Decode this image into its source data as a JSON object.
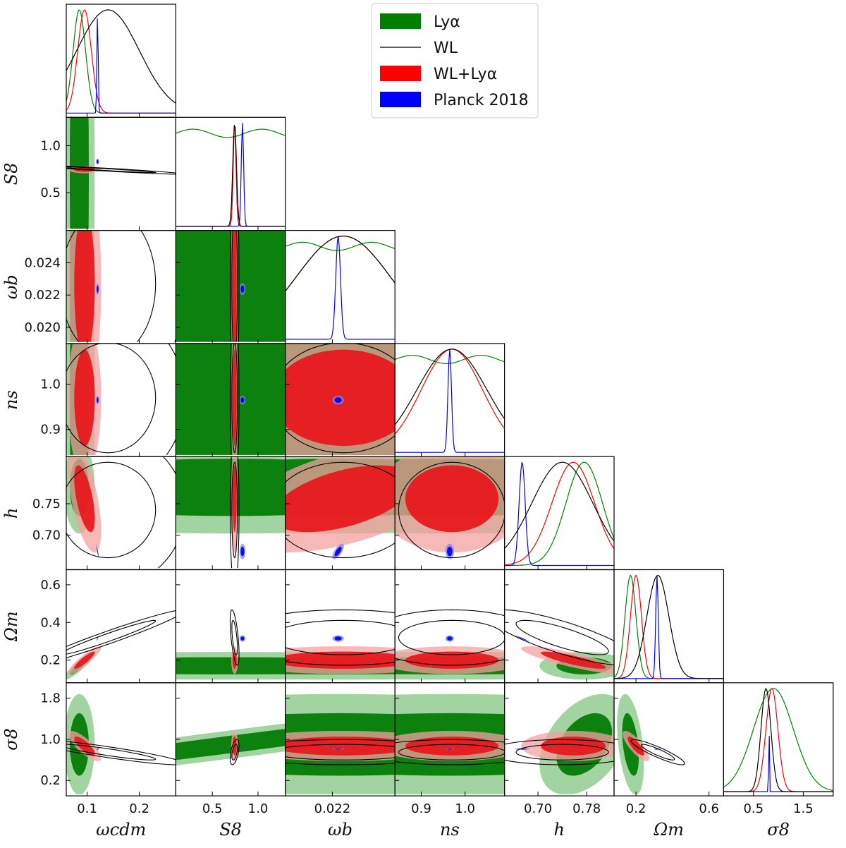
{
  "chart_data": {
    "type": "corner",
    "parameters": [
      {
        "key": "omega_cdm",
        "label": "ωcdm",
        "range": [
          0.06,
          0.27
        ],
        "ticks": [
          0.1,
          0.2
        ],
        "tick_labels": [
          "0.1",
          "0.2"
        ]
      },
      {
        "key": "S8",
        "label": "S8",
        "range": [
          0.1,
          1.3
        ],
        "ticks": [
          0.5,
          1.0
        ],
        "tick_labels": [
          "0.5",
          "1.0"
        ],
        "row_ticks": [
          0.5,
          1.0
        ],
        "row_tick_labels": [
          "0.5",
          "1.0"
        ]
      },
      {
        "key": "omega_b",
        "label": "ωb",
        "range": [
          0.019,
          0.026
        ],
        "ticks": [
          0.022
        ],
        "tick_labels": [
          "0.022"
        ],
        "row_ticks": [
          0.02,
          0.022,
          0.024
        ],
        "row_tick_labels": [
          "0.020",
          "0.022",
          "0.024"
        ]
      },
      {
        "key": "n_s",
        "label": "ns",
        "range": [
          0.84,
          1.09
        ],
        "ticks": [
          0.9,
          1.0
        ],
        "tick_labels": [
          "0.9",
          "1.0"
        ],
        "row_ticks": [
          0.9,
          1.0
        ],
        "row_tick_labels": [
          "0.9",
          "1.0"
        ]
      },
      {
        "key": "h",
        "label": "h",
        "range": [
          0.645,
          0.825
        ],
        "ticks": [
          0.7,
          0.78
        ],
        "tick_labels": [
          "0.70",
          "0.78"
        ],
        "row_ticks": [
          0.7,
          0.75
        ],
        "row_tick_labels": [
          "0.70",
          "0.75"
        ]
      },
      {
        "key": "Omega_m",
        "label": "Ωm",
        "range": [
          0.08,
          0.68
        ],
        "ticks": [
          0.2,
          0.6
        ],
        "tick_labels": [
          "0.2",
          "0.6"
        ],
        "row_ticks": [
          0.2,
          0.4,
          0.6
        ],
        "row_tick_labels": [
          "0.2",
          "0.4",
          "0.6"
        ]
      },
      {
        "key": "sigma8",
        "label": "σ8",
        "range": [
          -0.1,
          2.1
        ],
        "ticks": [
          0.5,
          1.5
        ],
        "tick_labels": [
          "0.5",
          "1.5"
        ],
        "row_ticks": [
          0.2,
          1.0,
          1.8
        ],
        "row_tick_labels": [
          "0.2",
          "1.0",
          "1.8"
        ]
      }
    ],
    "series": [
      {
        "name": "Lyα",
        "color": "#008000",
        "style": "filled",
        "values": {
          "omega_cdm": {
            "mean": 0.085,
            "sd": 0.012
          },
          "S8": {
            "flat": true
          },
          "omega_b": {
            "flat": true
          },
          "n_s": {
            "flat": true
          },
          "h": {
            "mean": 0.776,
            "sd": 0.03
          },
          "Omega_m": {
            "mean": 0.17,
            "sd": 0.03
          },
          "sigma8": {
            "mean": 0.9,
            "sd": 0.4
          }
        }
      },
      {
        "name": "WL",
        "color": "#000000",
        "style": "line",
        "values": {
          "omega_cdm": {
            "mean": 0.14,
            "sd": 0.06
          },
          "S8": {
            "mean": 0.744,
            "sd": 0.02
          },
          "omega_b": {
            "mean": 0.0227,
            "sd": 0.003
          },
          "n_s": {
            "mean": 0.97,
            "sd": 0.08
          },
          "h": {
            "mean": 0.74,
            "sd": 0.05
          },
          "Omega_m": {
            "mean": 0.32,
            "sd": 0.06
          },
          "sigma8": {
            "mean": 0.75,
            "sd": 0.1
          }
        }
      },
      {
        "name": "WL+Lyα",
        "color": "#ff0000",
        "style": "filled",
        "values": {
          "omega_cdm": {
            "mean": 0.095,
            "sd": 0.013
          },
          "S8": {
            "mean": 0.744,
            "sd": 0.015
          },
          "omega_b": {
            "mean": 0.0227,
            "sd": 0.003
          },
          "n_s": {
            "mean": 0.97,
            "sd": 0.07
          },
          "h": {
            "mean": 0.758,
            "sd": 0.035
          },
          "Omega_m": {
            "mean": 0.2,
            "sd": 0.03
          },
          "sigma8": {
            "mean": 0.87,
            "sd": 0.12
          }
        }
      },
      {
        "name": "Planck 2018",
        "color": "#0000ff",
        "style": "filled",
        "values": {
          "omega_cdm": {
            "mean": 0.12,
            "sd": 0.0012
          },
          "S8": {
            "mean": 0.83,
            "sd": 0.013
          },
          "omega_b": {
            "mean": 0.02237,
            "sd": 0.00015
          },
          "n_s": {
            "mean": 0.965,
            "sd": 0.004
          },
          "h": {
            "mean": 0.674,
            "sd": 0.005
          },
          "Omega_m": {
            "mean": 0.315,
            "sd": 0.007
          },
          "sigma8": {
            "mean": 0.81,
            "sd": 0.006
          }
        }
      }
    ],
    "legend": {
      "placement": "top-right",
      "entries": [
        {
          "text": "Lyα",
          "color": "#008000",
          "kind": "patch"
        },
        {
          "text": "WL",
          "color": "#000000",
          "kind": "line"
        },
        {
          "text": "WL+Lyα",
          "color": "#ff0000",
          "kind": "patch"
        },
        {
          "text": "Planck 2018",
          "color": "#0000ff",
          "kind": "patch"
        }
      ]
    }
  }
}
